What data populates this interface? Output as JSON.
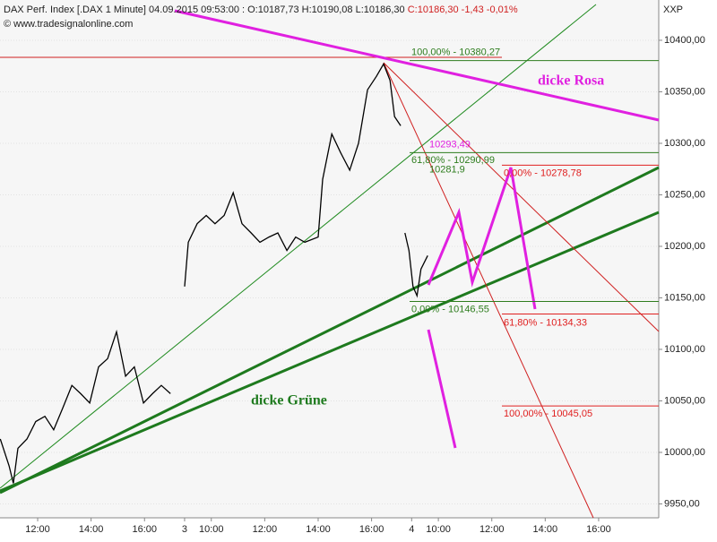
{
  "chart_data": {
    "type": "line",
    "title": "DAX Perf. Index [.DAX  1 Minute] 04.09.2015 09:53:00 : O:10187,73 H:10190,08 L:10186,30",
    "title_change": "C:10186,30 -1,43 -0,01%",
    "copyright": "© www.tradesignalonline.com",
    "axis_label": "XXP",
    "color": "#000000",
    "x": [
      1.6,
      1.93,
      2.09,
      2.26,
      2.6,
      2.93,
      3.27,
      3.6,
      3.94,
      4.28,
      4.61,
      4.95,
      5.28,
      5.62,
      5.95,
      6.29,
      6.62,
      6.96,
      7.3,
      7.63,
      7.97,
      8.3,
      8.5,
      8.64,
      8.97,
      9.31,
      9.64,
      9.98,
      10.32,
      10.65,
      10.99,
      11.32,
      11.66,
      11.99,
      12.33,
      12.66,
      13.0,
      13.5,
      13.67,
      14.01,
      14.34,
      14.68,
      15.01,
      15.35,
      15.68,
      15.95,
      16.19,
      16.36,
      16.59,
      16.67,
      16.75,
      16.9,
      17.05,
      17.2,
      17.35,
      17.6
    ],
    "values": [
      10013,
      9987,
      9970,
      10004,
      10013,
      10030,
      10035,
      10022,
      10043,
      10065,
      10057,
      10048,
      10083,
      10091,
      10117,
      10074,
      10083,
      10048,
      10057,
      10065,
      10057,
      null,
      10161,
      10204,
      10222,
      10230,
      10222,
      10230,
      10252,
      10222,
      10213,
      10204,
      10209,
      10213,
      10196,
      10209,
      10204,
      10209,
      10265,
      10309,
      10291,
      10274,
      10300,
      10352,
      10365,
      10377,
      10361,
      10326,
      10317,
      null,
      10213,
      10196,
      10161,
      10152,
      10178,
      10191
    ],
    "xlim": [
      1.59,
      26.25
    ],
    "ylim": [
      9936.5,
      10439.1
    ],
    "xticks": [
      {
        "value": 3,
        "label": "12:00"
      },
      {
        "value": 5,
        "label": "14:00"
      },
      {
        "value": 7,
        "label": "16:00"
      },
      {
        "value": 8.5,
        "label": "3"
      },
      {
        "value": 9.5,
        "label": "10:00"
      },
      {
        "value": 11.5,
        "label": "12:00"
      },
      {
        "value": 13.5,
        "label": "14:00"
      },
      {
        "value": 15.5,
        "label": "16:00"
      },
      {
        "value": 17,
        "label": "4"
      },
      {
        "value": 18,
        "label": "10:00"
      },
      {
        "value": 20,
        "label": "12:00"
      },
      {
        "value": 22,
        "label": "14:00"
      },
      {
        "value": 24,
        "label": "16:00"
      }
    ],
    "yticks": [
      {
        "value": 9950,
        "label": "9950,00"
      },
      {
        "value": 10000,
        "label": "10000,00"
      },
      {
        "value": 10050,
        "label": "10050,00"
      },
      {
        "value": 10100,
        "label": "10100,00"
      },
      {
        "value": 10150,
        "label": "10150,00"
      },
      {
        "value": 10200,
        "label": "10200,00"
      },
      {
        "value": 10250,
        "label": "10250,00"
      },
      {
        "value": 10300,
        "label": "10300,00"
      },
      {
        "value": 10350,
        "label": "10350,00"
      },
      {
        "value": 10400,
        "label": "10400,00"
      }
    ],
    "levels": [
      {
        "label": "100,00% - 10380,27",
        "value": 10380.27,
        "color": "#2e7d1e",
        "line": true
      },
      {
        "label": "10293,49",
        "value": 10293.49,
        "color": "#e020e0",
        "line": false
      },
      {
        "label": "61,80% - 10290,99",
        "value": 10290.99,
        "color": "#2e7d1e",
        "line": true
      },
      {
        "label": "10281,9",
        "value": 10281.9,
        "color": "#2e7d1e",
        "line": false
      },
      {
        "label": "0,00% - 10278,78",
        "value": 10278.78,
        "color": "#e02020",
        "line": true
      },
      {
        "label": "0,00% - 10146,55",
        "value": 10146.55,
        "color": "#2e7d1e",
        "line": true
      },
      {
        "label": "61,80% - 10134,33",
        "value": 10134.33,
        "color": "#e02020",
        "line": true
      },
      {
        "label": "100,00% - 10045,05",
        "value": 10045.05,
        "color": "#e02020",
        "line": true
      }
    ],
    "annotations": [
      {
        "text": "dicke Rosa",
        "color": "#e020e0"
      },
      {
        "text": "dicke Grüne",
        "color": "#1e7a1e"
      }
    ]
  }
}
